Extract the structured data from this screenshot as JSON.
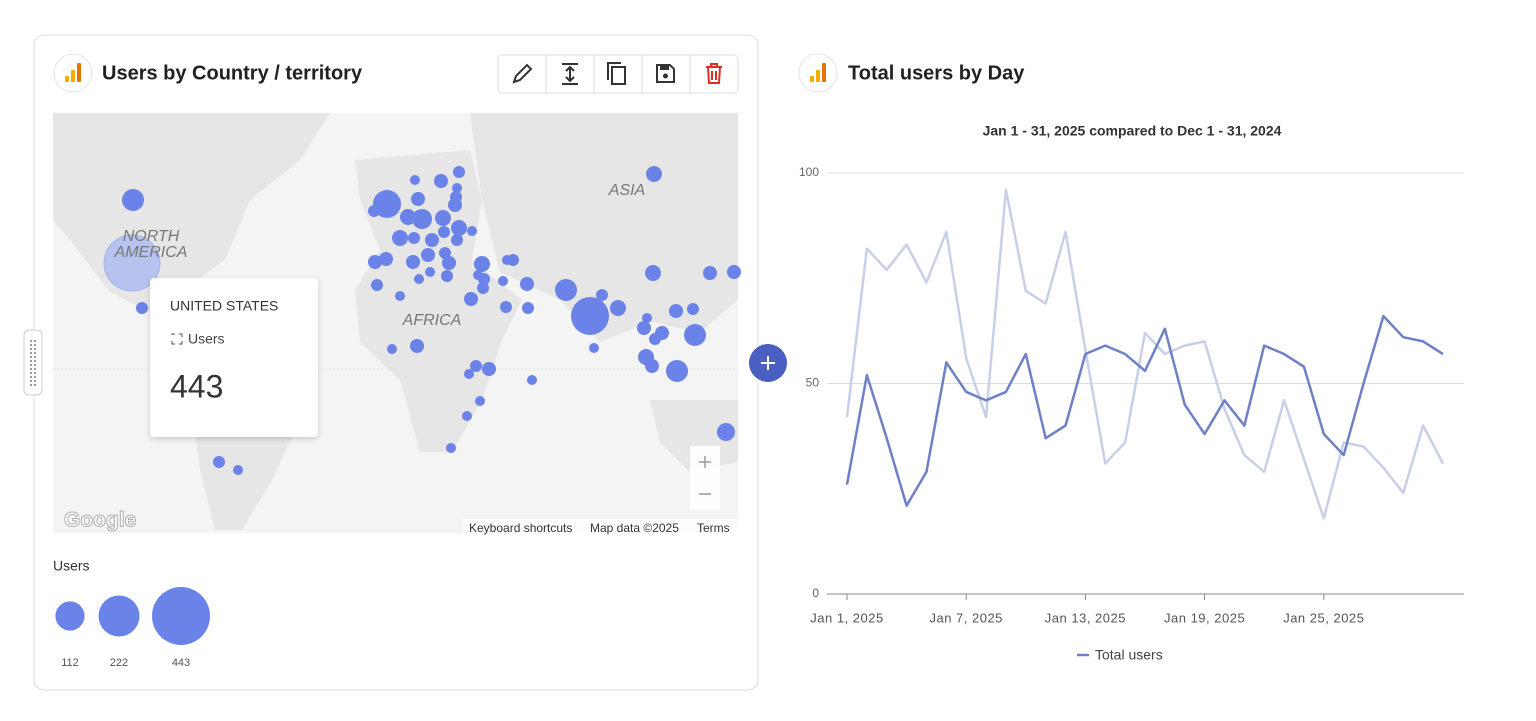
{
  "map_card": {
    "title": "Users by Country / territory",
    "map_labels": [
      "NORTH",
      "AMERICA",
      "ASIA",
      "AFRICA"
    ],
    "tooltip": {
      "country": "UNITED STATES",
      "metric": "Users",
      "value": 443
    },
    "logo": "Google",
    "attribution": [
      "Keyboard shortcuts",
      "Map data ©2025",
      "Terms"
    ],
    "legend": {
      "title": "Users",
      "values": [
        112,
        222,
        443
      ]
    }
  },
  "chart_data": {
    "type": "line",
    "title": "Total users by Day",
    "subtitle": "Jan 1 - 31, 2025 compared to Dec 1 - 31, 2024",
    "categories": [
      "Jan 1, 2025",
      null,
      null,
      null,
      null,
      null,
      "Jan 7, 2025",
      null,
      null,
      null,
      null,
      null,
      "Jan 13, 2025",
      null,
      null,
      null,
      null,
      null,
      "Jan 19, 2025",
      null,
      null,
      null,
      null,
      null,
      "Jan 25, 2025",
      null,
      null,
      null,
      null,
      null,
      null
    ],
    "series": [
      {
        "name": "Total users",
        "color": "#6e80c6",
        "values": [
          26,
          52,
          37,
          21,
          29,
          55,
          48,
          46,
          48,
          57,
          37,
          40,
          57,
          59,
          57,
          53,
          63,
          45,
          38,
          46,
          40,
          59,
          57,
          54,
          38,
          33,
          50,
          66,
          61,
          60,
          57
        ]
      },
      {
        "color": "#c9cfe9",
        "values": [
          42,
          82,
          77,
          83,
          74,
          86,
          56,
          42,
          96,
          72,
          69,
          86,
          58,
          31,
          36,
          62,
          57,
          59,
          60,
          44,
          33,
          29,
          46,
          32,
          18,
          36,
          35,
          30,
          24,
          40,
          31
        ]
      }
    ],
    "ylim": [
      0,
      100
    ],
    "yticks": [
      0,
      50,
      100
    ],
    "grid": true
  }
}
